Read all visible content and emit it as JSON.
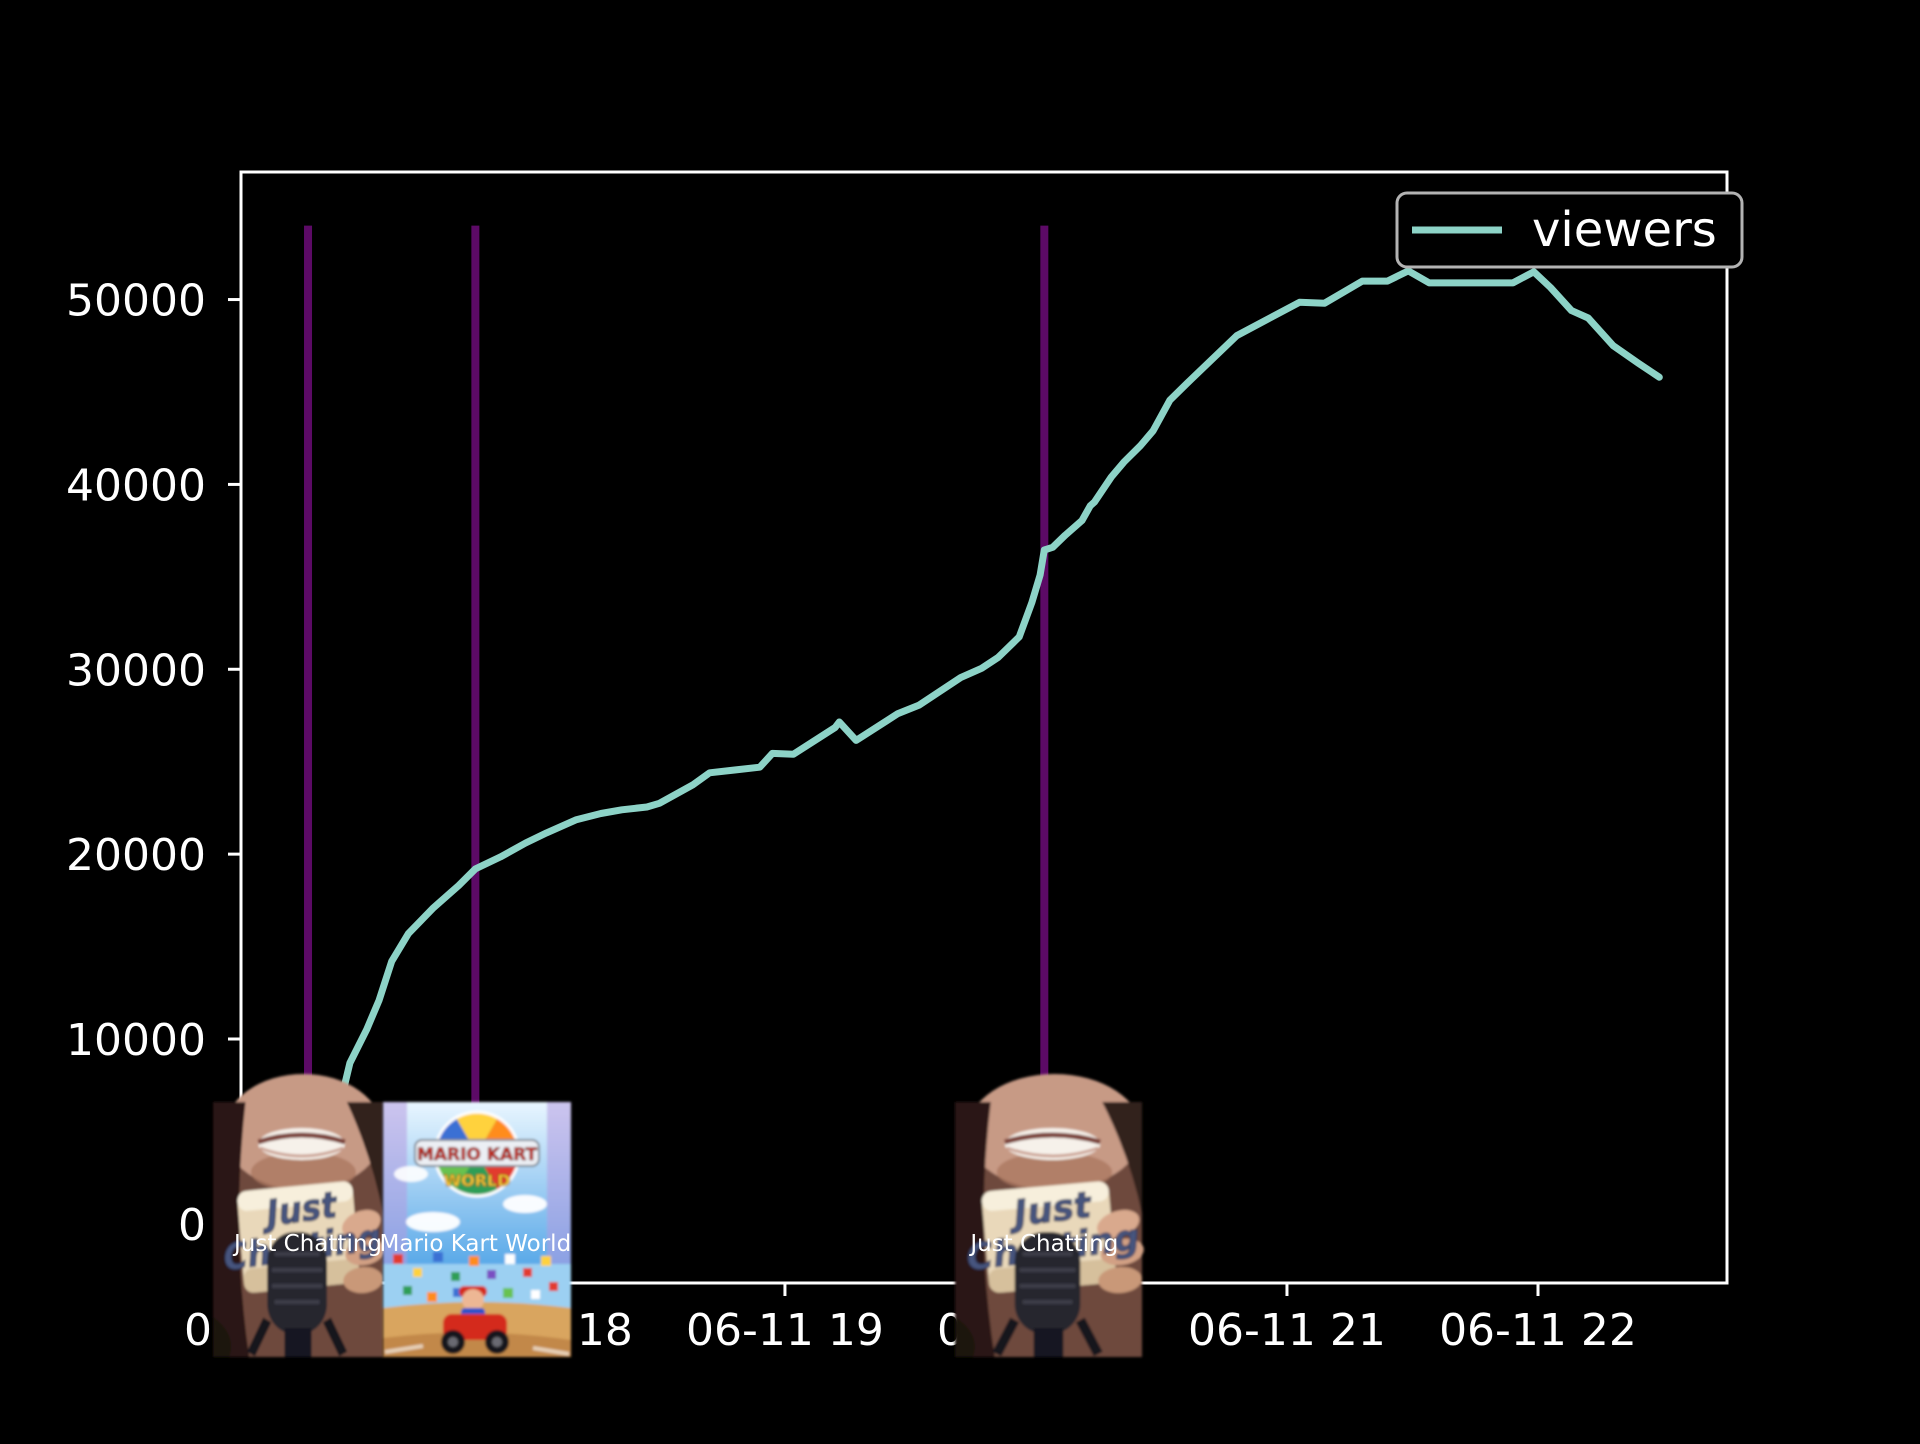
{
  "figure": {
    "background": "#000000",
    "plot_background": "#000000",
    "spine_color": "#ffffff",
    "tick_color": "#ffffff",
    "text_color": "#ffffff"
  },
  "legend": {
    "label": "viewers",
    "series_color": "#8dd3c7",
    "frame_color": "#b3b3b3",
    "position": "upper right"
  },
  "chart_data": {
    "type": "line",
    "title": "",
    "xlabel": "",
    "ylabel": "",
    "grid": false,
    "legend_position": "upper right",
    "x_date": "06-11",
    "x_tick_hours": [
      17,
      18,
      19,
      20,
      21,
      22
    ],
    "x_tick_labels": [
      "06-11 17",
      "06-11 18",
      "06-11 19",
      "06-11 20",
      "06-11 21",
      "06-11 22"
    ],
    "y_ticks": [
      0,
      10000,
      20000,
      30000,
      40000,
      50000
    ],
    "xlim_hours": [
      16.833,
      22.753
    ],
    "ylim": [
      -3200,
      56900
    ],
    "series": [
      {
        "name": "viewers",
        "color": "#8dd3c7",
        "line_width": 7,
        "points": [
          [
            "17:06",
            1800
          ],
          [
            "17:10",
            4300
          ],
          [
            "17:14",
            6800
          ],
          [
            "17:16",
            8700
          ],
          [
            "17:20",
            10500
          ],
          [
            "17:23",
            12100
          ],
          [
            "17:26",
            14200
          ],
          [
            "17:30",
            15700
          ],
          [
            "17:36",
            17100
          ],
          [
            "17:42",
            18300
          ],
          [
            "17:46",
            19200
          ],
          [
            "17:52",
            19850
          ],
          [
            "17:58",
            20600
          ],
          [
            "18:03",
            21150
          ],
          [
            "18:10",
            21850
          ],
          [
            "18:16",
            22200
          ],
          [
            "18:21",
            22400
          ],
          [
            "18:27",
            22550
          ],
          [
            "18:30",
            22750
          ],
          [
            "18:38",
            23750
          ],
          [
            "18:42",
            24400
          ],
          [
            "18:48",
            24550
          ],
          [
            "18:54",
            24700
          ],
          [
            "18:57",
            25450
          ],
          [
            "19:02",
            25400
          ],
          [
            "19:12",
            26850
          ],
          [
            "19:13",
            27150
          ],
          [
            "19:17",
            26150
          ],
          [
            "19:27",
            27600
          ],
          [
            "19:32",
            28050
          ],
          [
            "19:42",
            29550
          ],
          [
            "19:47",
            30050
          ],
          [
            "19:51",
            30650
          ],
          [
            "19:56",
            31750
          ],
          [
            "19:59",
            33600
          ],
          [
            "20:01",
            35100
          ],
          [
            "20:02",
            36450
          ],
          [
            "20:04",
            36600
          ],
          [
            "20:07",
            37250
          ],
          [
            "20:11",
            38050
          ],
          [
            "20:13",
            38850
          ],
          [
            "20:14",
            39050
          ],
          [
            "20:18",
            40400
          ],
          [
            "20:21",
            41200
          ],
          [
            "20:25",
            42100
          ],
          [
            "20:28",
            42900
          ],
          [
            "20:32",
            44550
          ],
          [
            "20:36",
            45450
          ],
          [
            "20:48",
            48050
          ],
          [
            "21:03",
            49850
          ],
          [
            "21:09",
            49800
          ],
          [
            "21:18",
            51000
          ],
          [
            "21:24",
            51000
          ],
          [
            "21:29",
            51550
          ],
          [
            "21:34",
            50900
          ],
          [
            "21:54",
            50900
          ],
          [
            "21:59",
            51500
          ],
          [
            "22:03",
            50650
          ],
          [
            "22:08",
            49400
          ],
          [
            "22:12",
            49000
          ],
          [
            "22:18",
            47500
          ],
          [
            "22:24",
            46550
          ],
          [
            "22:29",
            45800
          ]
        ]
      }
    ],
    "event_lines": [
      {
        "time": "17:06",
        "label": "Just Chatting",
        "color": "#5c0a66",
        "y_from": 0,
        "y_to": 54000
      },
      {
        "time": "17:46",
        "label": "Mario Kart World",
        "color": "#5c0a66",
        "y_from": 0,
        "y_to": 54000
      },
      {
        "time": "20:02",
        "label": "Just Chatting",
        "color": "#5c0a66",
        "y_from": 0,
        "y_to": 54000
      }
    ]
  },
  "thumbnails": [
    {
      "label": "Just Chatting",
      "time": "17:06",
      "kind": "just-chatting"
    },
    {
      "label": "Mario Kart World",
      "time": "17:46",
      "kind": "mario-kart-world"
    },
    {
      "label": "Just Chatting",
      "time": "20:02",
      "kind": "just-chatting"
    }
  ]
}
